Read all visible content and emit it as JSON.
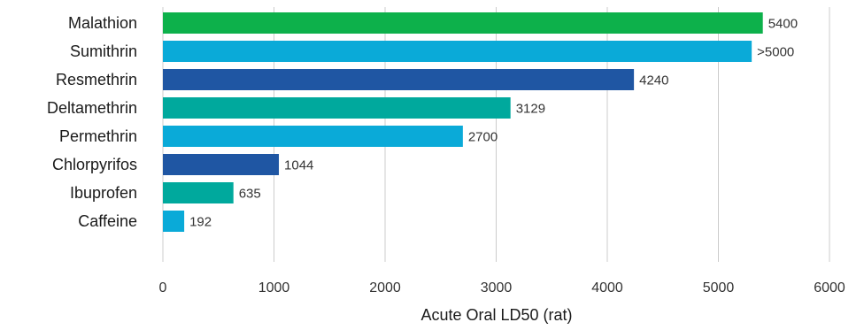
{
  "chart_data": {
    "type": "bar",
    "orientation": "horizontal",
    "title": "",
    "xlabel": "Acute Oral LD50 (rat)",
    "ylabel": "",
    "xlim": [
      0,
      6000
    ],
    "x_ticks": [
      0,
      1000,
      2000,
      3000,
      4000,
      5000,
      6000
    ],
    "grid": "vertical",
    "legend": "none",
    "categories": [
      "Malathion",
      "Sumithrin",
      "Resmethrin",
      "Deltamethrin",
      "Permethrin",
      "Chlorpyrifos",
      "Ibuprofen",
      "Caffeine"
    ],
    "values": [
      5400,
      5300,
      4240,
      3129,
      2700,
      1044,
      635,
      192
    ],
    "value_labels": [
      "5400",
      ">5000",
      "4240",
      "3129",
      "2700",
      "1044",
      "635",
      "192"
    ],
    "colors": [
      "#0db14b",
      "#0aaad8",
      "#1f56a3",
      "#00a99d",
      "#0aaad8",
      "#1f56a3",
      "#00a99d",
      "#0aaad8"
    ]
  }
}
